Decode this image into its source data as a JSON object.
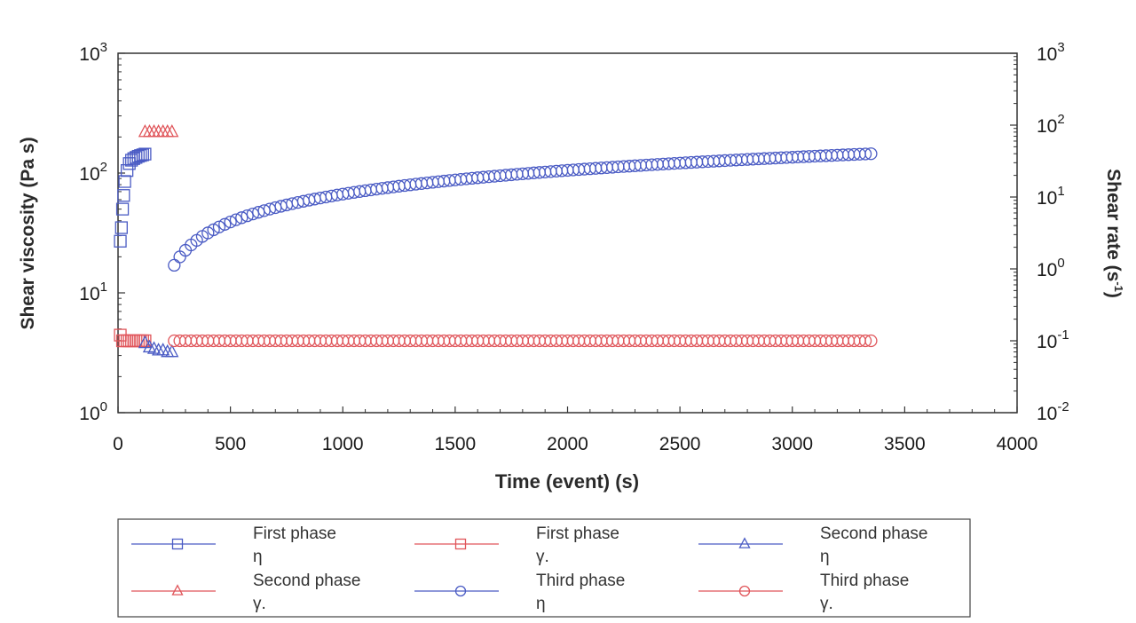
{
  "chart_data": {
    "type": "scatter",
    "xlabel": "Time (event) (s)",
    "ylabel_left": "Shear viscosity (Pa s)",
    "ylabel_right": "Shear rate (s-1)",
    "ylabel_right_base": "Shear rate (s",
    "ylabel_right_sup": "-1",
    "ylabel_right_end": ")",
    "xlim": [
      0,
      4000
    ],
    "x_ticks": [
      "0",
      "500",
      "1000",
      "1500",
      "2000",
      "2500",
      "3000",
      "3500",
      "4000"
    ],
    "y_left_scale": "log",
    "y_left_lim": [
      1,
      1000
    ],
    "y_left_ticks": [
      {
        "base": "10",
        "exp": "0"
      },
      {
        "base": "10",
        "exp": "1"
      },
      {
        "base": "10",
        "exp": "2"
      },
      {
        "base": "10",
        "exp": "3"
      }
    ],
    "y_right_scale": "log",
    "y_right_lim": [
      0.01,
      1000
    ],
    "y_right_ticks": [
      {
        "base": "10",
        "exp": "-2"
      },
      {
        "base": "10",
        "exp": "-1"
      },
      {
        "base": "10",
        "exp": "0"
      },
      {
        "base": "10",
        "exp": "1"
      },
      {
        "base": "10",
        "exp": "2"
      },
      {
        "base": "10",
        "exp": "3"
      }
    ],
    "grid": false,
    "legend_position": "bottom",
    "series": [
      {
        "name": "First phase η",
        "label_line1": "First phase",
        "label_line2": "η",
        "marker": "square",
        "color": "#4a5bc4",
        "axis": "left",
        "x": [
          10,
          15,
          20,
          25,
          30,
          40,
          50,
          60,
          70,
          80,
          90,
          100,
          110,
          120
        ],
        "y": [
          27,
          35,
          50,
          65,
          85,
          105,
          120,
          128,
          132,
          135,
          138,
          140,
          142,
          144
        ]
      },
      {
        "name": "First phase γ.",
        "label_line1": "First phase",
        "label_line2": "γ.",
        "marker": "square",
        "color": "#e0555a",
        "axis": "right",
        "x": [
          10,
          20,
          30,
          40,
          50,
          60,
          70,
          80,
          90,
          100,
          110,
          120
        ],
        "y": [
          0.12,
          0.1,
          0.1,
          0.1,
          0.1,
          0.1,
          0.1,
          0.1,
          0.1,
          0.1,
          0.1,
          0.1
        ]
      },
      {
        "name": "Second phase η",
        "label_line1": "Second phase",
        "label_line2": "η",
        "marker": "triangle",
        "color": "#4a5bc4",
        "axis": "left",
        "x": [
          120,
          140,
          160,
          180,
          200,
          220,
          240
        ],
        "y": [
          3.8,
          3.5,
          3.4,
          3.3,
          3.3,
          3.2,
          3.2
        ]
      },
      {
        "name": "Second phase γ.",
        "label_line1": "Second phase",
        "label_line2": "γ.",
        "marker": "triangle",
        "color": "#e0555a",
        "axis": "right",
        "x": [
          120,
          140,
          160,
          180,
          200,
          220,
          240
        ],
        "y": [
          80,
          80,
          80,
          80,
          80,
          80,
          80
        ]
      },
      {
        "name": "Third phase η",
        "label_line1": "Third phase",
        "label_line2": "η",
        "marker": "circle",
        "color": "#4a5bc4",
        "axis": "left",
        "curve": {
          "x_start": 250,
          "x_end": 3350,
          "step": 25,
          "y_start": 17,
          "y_end": 145,
          "shape": "log-rise"
        }
      },
      {
        "name": "Third phase γ.",
        "label_line1": "Third phase",
        "label_line2": "γ.",
        "marker": "circle",
        "color": "#e0555a",
        "axis": "right",
        "curve": {
          "x_start": 250,
          "x_end": 3350,
          "step": 25,
          "y_start": 0.1,
          "y_end": 0.1,
          "shape": "constant"
        }
      }
    ]
  }
}
